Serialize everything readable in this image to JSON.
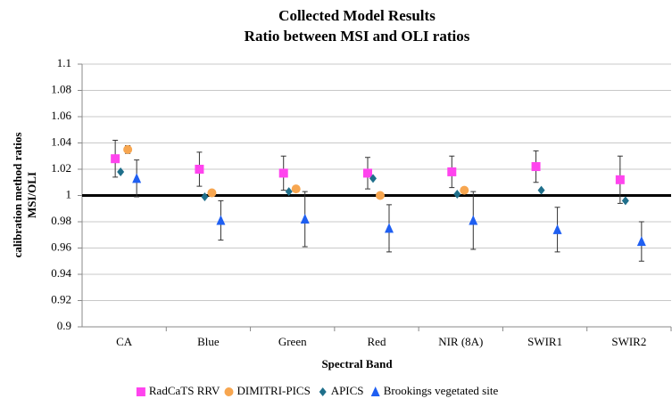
{
  "chart_data": {
    "type": "errorbar",
    "title": [
      "Collected Model Results",
      "Ratio between MSI and OLI ratios"
    ],
    "x_label": "Spectral Band",
    "y_label": [
      "calibration method ratios",
      "MSI/OLI"
    ],
    "categories": [
      "CA",
      "Blue",
      "Green",
      "Red",
      "NIR (8A)",
      "SWIR1",
      "SWIR2"
    ],
    "series": [
      {
        "name": "RadCaTS RRV",
        "color": "#ff44ee",
        "marker": "square",
        "values": [
          1.028,
          1.02,
          1.017,
          1.017,
          1.018,
          1.022,
          1.012
        ],
        "errors": [
          0.014,
          0.013,
          0.013,
          0.012,
          0.012,
          0.012,
          0.018
        ]
      },
      {
        "name": "DIMITRI-PICS",
        "color": "#f7a650",
        "marker": "circle",
        "values": [
          1.035,
          1.002,
          1.005,
          1.0,
          1.004,
          null,
          null
        ],
        "errors": [
          0.003,
          null,
          null,
          null,
          null,
          null,
          null
        ]
      },
      {
        "name": "APICS",
        "color": "#1f6f8b",
        "marker": "diamond",
        "values": [
          1.018,
          0.999,
          1.003,
          1.013,
          1.001,
          1.004,
          0.996
        ],
        "errors": [
          null,
          null,
          null,
          null,
          null,
          null,
          null
        ]
      },
      {
        "name": "Brookings vegetated site",
        "color": "#1f5ff2",
        "marker": "triangle",
        "values": [
          1.013,
          0.981,
          0.982,
          0.975,
          0.981,
          0.974,
          0.965
        ],
        "errors": [
          0.014,
          0.015,
          0.021,
          0.018,
          0.022,
          0.017,
          0.015
        ]
      }
    ],
    "reference_line": 1,
    "ylim": [
      0.9,
      1.1
    ],
    "yticks": [
      0.9,
      0.92,
      0.94,
      0.96,
      0.98,
      1,
      1.02,
      1.04,
      1.06,
      1.08,
      1.1
    ],
    "grid": true,
    "legend": "bottom"
  }
}
